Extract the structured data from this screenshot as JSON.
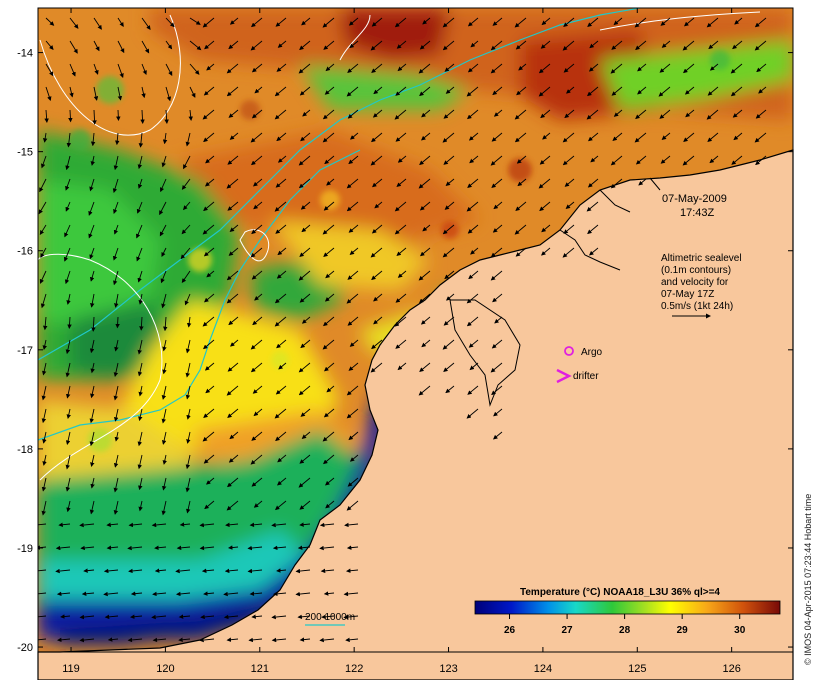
{
  "map": {
    "longitude_ticks": [
      "119",
      "120",
      "121",
      "122",
      "123",
      "124",
      "125",
      "126"
    ],
    "latitude_ticks": [
      "-14",
      "-15",
      "-16",
      "-17",
      "-18",
      "-19",
      "-20"
    ],
    "longitude_range": [
      118.65,
      126.65
    ],
    "latitude_range": [
      -13.55,
      -20.05
    ]
  },
  "annotations": {
    "date": "07-May-2009",
    "time": "17:43Z",
    "altimetry_lines": [
      "Altimetric sealevel",
      "(0.1m contours)",
      "and velocity for",
      "07-May 17Z",
      "0.5m/s (1kt 24h)"
    ],
    "argo_label": "Argo",
    "drifter_label": "drifter",
    "depth_legend": "200  1000m"
  },
  "colorbar": {
    "title": "Temperature (°C) NOAA18_L3U 36% ql>=4",
    "ticks": [
      "26",
      "27",
      "28",
      "29",
      "30"
    ],
    "range": [
      25.4,
      30.7
    ]
  },
  "credit": "© IMOS 04-Apr-2015 07:23:44 Hobart time",
  "colors": {
    "land": "#f8c79c",
    "coast_cold": "#0a1fa0",
    "shelf_green": "#2fb43a",
    "warm_orange": "#e07a18",
    "hot_red": "#a8190c",
    "argo": "#e020e0",
    "isobath": "#22c8c8"
  }
}
